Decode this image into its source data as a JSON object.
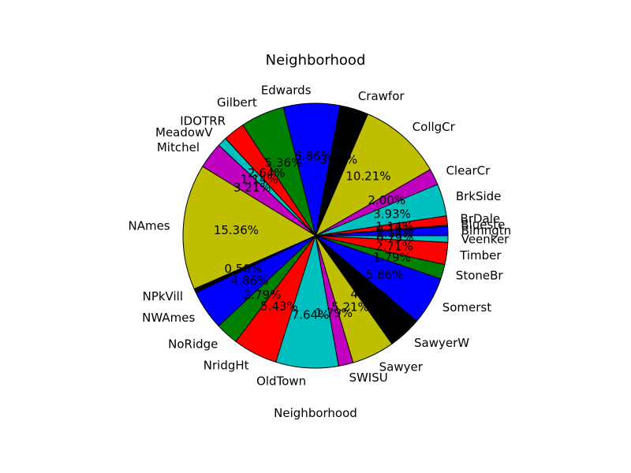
{
  "chart_data": {
    "type": "pie",
    "title": "Neighborhood",
    "xlabel": "Neighborhood",
    "start_angle_deg": 0,
    "direction": "counterclockwise",
    "categories": [
      "Blmngtn",
      "Blueste",
      "BrDale",
      "BrkSide",
      "ClearCr",
      "CollgCr",
      "Crawfor",
      "Edwards",
      "Gilbert",
      "IDOTRR",
      "MeadowV",
      "Mitchel",
      "NAmes",
      "NPkVill",
      "NWAmes",
      "NoRidge",
      "NridgHt",
      "OldTown",
      "SWISU",
      "Sawyer",
      "SawyerW",
      "Somerst",
      "StoneBr",
      "Timber",
      "Veenker"
    ],
    "values": [
      1.14,
      0.14,
      1.14,
      3.93,
      2.0,
      10.21,
      3.5,
      6.86,
      5.36,
      2.64,
      1.14,
      3.21,
      15.36,
      0.5,
      4.86,
      2.79,
      5.43,
      7.64,
      1.79,
      5.21,
      4.07,
      5.86,
      1.79,
      2.71,
      0.79
    ],
    "labels": [
      "1.14%",
      "0.14%",
      "1.14%",
      "3.93%",
      "2.00%",
      "10.21%",
      "3.50%",
      "6.86%",
      "5.36%",
      "2.64%",
      "1.14%",
      "3.21%",
      "15.36%",
      "0.50%",
      "4.86%",
      "2.79%",
      "5.43%",
      "7.64%",
      "1.79%",
      "5.21%",
      "4.07%",
      "5.86%",
      "1.79%",
      "2.71%",
      "0.79%"
    ],
    "colors": [
      "#0000ff",
      "#008000",
      "#ff0000",
      "#00bfbf",
      "#bf00bf",
      "#bfbf00",
      "#000000",
      "#0000ff",
      "#008000",
      "#ff0000",
      "#00bfbf",
      "#bf00bf",
      "#bfbf00",
      "#000000",
      "#0000ff",
      "#008000",
      "#ff0000",
      "#00bfbf",
      "#bf00bf",
      "#bfbf00",
      "#000000",
      "#0000ff",
      "#008000",
      "#ff0000",
      "#00bfbf"
    ],
    "legend": "none"
  }
}
